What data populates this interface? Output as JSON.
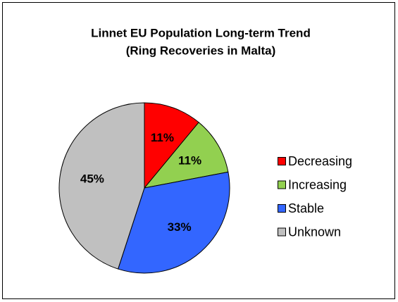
{
  "chart_data": {
    "type": "pie",
    "title": [
      "Linnet EU Population Long-term Trend",
      "(Ring Recoveries in Malta)"
    ],
    "categories": [
      "Decreasing",
      "Increasing",
      "Stable",
      "Unknown"
    ],
    "values": [
      11,
      11,
      33,
      45
    ],
    "value_labels": [
      "11%",
      "11%",
      "33%",
      "45%"
    ],
    "colors": [
      "#ff0000",
      "#92d050",
      "#3366ff",
      "#c0c0c0"
    ],
    "legend": "right"
  }
}
